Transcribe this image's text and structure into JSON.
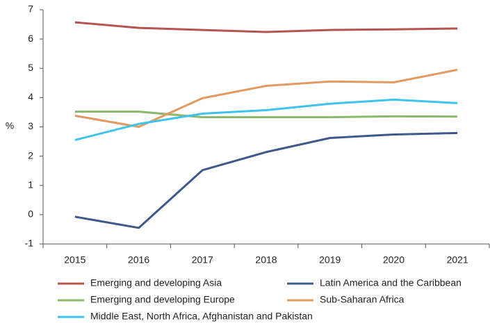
{
  "chart_data": {
    "type": "line",
    "y_label": "%",
    "categories": [
      "2015",
      "2016",
      "2017",
      "2018",
      "2019",
      "2020",
      "2021"
    ],
    "series": [
      {
        "name": "Emerging and developing Asia",
        "color": "#b5534f",
        "values": [
          6.57,
          6.38,
          6.31,
          6.24,
          6.31,
          6.33,
          6.36
        ]
      },
      {
        "name": "Latin America and the Caribbean",
        "color": "#3d5a8a",
        "values": [
          -0.07,
          -0.45,
          1.52,
          2.14,
          2.62,
          2.74,
          2.79
        ]
      },
      {
        "name": "Emerging and developing Europe",
        "color": "#8cb86b",
        "values": [
          3.52,
          3.52,
          3.33,
          3.33,
          3.33,
          3.36,
          3.35
        ]
      },
      {
        "name": "Sub-Saharan Africa",
        "color": "#e39a62",
        "values": [
          3.38,
          3.0,
          3.98,
          4.4,
          4.55,
          4.52,
          4.95
        ]
      },
      {
        "name": "Middle East, North Africa, Afghanistan and Pakistan",
        "color": "#3ec3ef",
        "values": [
          2.55,
          3.1,
          3.45,
          3.57,
          3.79,
          3.93,
          3.81
        ]
      }
    ],
    "ylim": [
      -1,
      7
    ],
    "yticks": [
      -1,
      0,
      1,
      2,
      3,
      4,
      5,
      6,
      7
    ]
  }
}
